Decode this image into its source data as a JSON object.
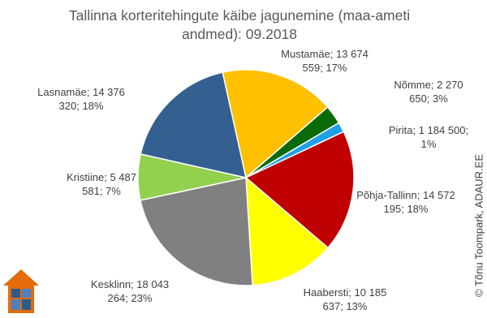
{
  "chart_data": {
    "type": "pie",
    "title": "Tallinna korteritehingute käibe jagunemine (maa-ameti andmed): 09.2018",
    "categories": [
      "Mustamäe;",
      "Nõmme;",
      "Pirita;",
      "Põhja-Tallinn;",
      "Haabersti;",
      "Kesklinn;",
      "Kristiine;",
      "Lasnamäe;"
    ],
    "values": [
      13674559,
      2270650,
      1184500,
      14572195,
      10185637,
      18043264,
      5487581,
      14376320
    ],
    "value_labels": [
      "13 674 559; 17%",
      "2 270 650; 3%",
      "1 184 500; 1%",
      "14 572 195; 18%",
      "10 185 637; 13%",
      "18 043 264; 23%",
      "5 487 581; 7%",
      "14 376 320; 18%"
    ],
    "colors": [
      "#ffc000",
      "#0b6b0b",
      "#1e9fe6",
      "#c00000",
      "#ffff00",
      "#808080",
      "#92d050",
      "#335f91"
    ],
    "watermark": "© Tõnu Toompark, ADAUR.EE"
  }
}
